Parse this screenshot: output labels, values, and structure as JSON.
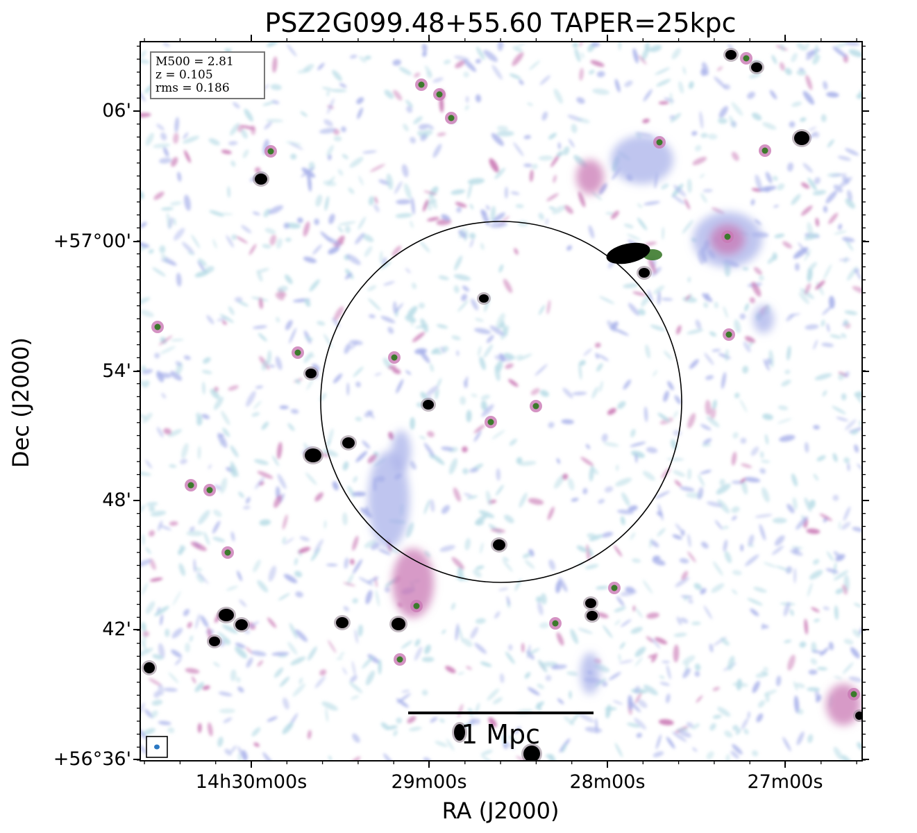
{
  "title": "PSZ2G099.48+55.60 TAPER=25kpc",
  "axes": {
    "xlabel": "RA (J2000)",
    "ylabel": "Dec (J2000)",
    "xticks": [
      "14h30m00s",
      "29m00s",
      "28m00s",
      "27m00s"
    ],
    "yticks": [
      "06'",
      "+57°00'",
      "54'",
      "48'",
      "42'",
      "+56°36'"
    ]
  },
  "info": {
    "m500": "M500 = 2.81",
    "z": "z = 0.105",
    "rms": "rms = 0.186"
  },
  "scalebar": {
    "label": "1 Mpc"
  },
  "colors": {
    "noise_light": "#b8dce6",
    "noise_mid": "#a9b2ea",
    "emission_pink": "#c978b4",
    "emission_green": "#3c7a2c",
    "source_core": "#000000",
    "beam": "#2b78c2"
  }
}
